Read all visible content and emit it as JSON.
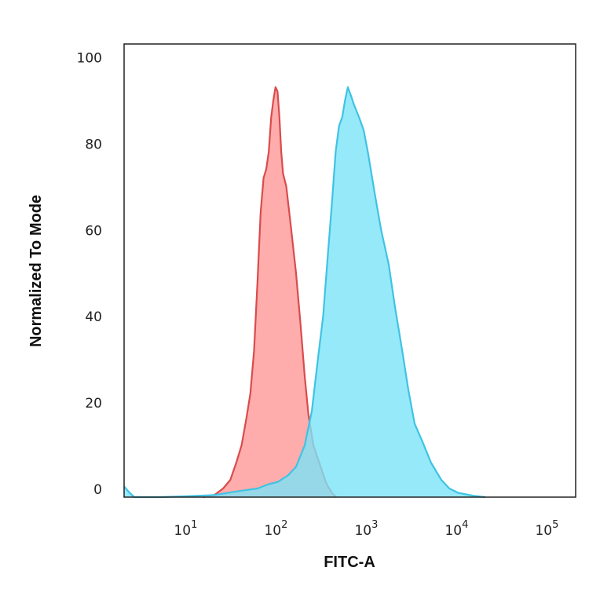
{
  "chart_data": {
    "type": "area",
    "xlabel": "FITC-A",
    "ylabel": "Normalized To Mode",
    "x_scale": "log",
    "xlim": [
      2,
      200000
    ],
    "ylim": [
      0,
      105
    ],
    "grid": false,
    "x_ticks": [
      {
        "value": 10,
        "base": "10",
        "exp": "1"
      },
      {
        "value": 100,
        "base": "10",
        "exp": "2"
      },
      {
        "value": 1000,
        "base": "10",
        "exp": "3"
      },
      {
        "value": 10000,
        "base": "10",
        "exp": "4"
      },
      {
        "value": 100000,
        "base": "10",
        "exp": "5"
      }
    ],
    "y_ticks": [
      {
        "value": 0,
        "label": "0"
      },
      {
        "value": 20,
        "label": "20"
      },
      {
        "value": 40,
        "label": "40"
      },
      {
        "value": 60,
        "label": "60"
      },
      {
        "value": 80,
        "label": "80"
      },
      {
        "value": 100,
        "label": "100"
      }
    ],
    "series": [
      {
        "fill": "#ff9d9d",
        "stroke": "#d94c4c",
        "fill_opacity": 0.85,
        "points": [
          [
            15,
            0
          ],
          [
            20,
            0.5
          ],
          [
            25,
            2
          ],
          [
            30,
            4
          ],
          [
            35,
            8
          ],
          [
            40,
            12
          ],
          [
            45,
            18
          ],
          [
            50,
            24
          ],
          [
            55,
            34
          ],
          [
            60,
            50
          ],
          [
            65,
            66
          ],
          [
            70,
            74
          ],
          [
            75,
            76
          ],
          [
            80,
            80
          ],
          [
            85,
            88
          ],
          [
            90,
            92
          ],
          [
            95,
            95
          ],
          [
            100,
            94
          ],
          [
            105,
            88
          ],
          [
            110,
            80
          ],
          [
            115,
            75
          ],
          [
            125,
            72
          ],
          [
            140,
            63
          ],
          [
            160,
            52
          ],
          [
            180,
            40
          ],
          [
            200,
            28
          ],
          [
            220,
            19
          ],
          [
            250,
            12
          ],
          [
            300,
            7
          ],
          [
            350,
            3
          ],
          [
            400,
            1
          ],
          [
            450,
            0
          ]
        ]
      },
      {
        "fill": "#7ce3f7",
        "stroke": "#3fc3e3",
        "fill_opacity": 0.8,
        "points": [
          [
            2,
            2.5
          ],
          [
            2.3,
            1
          ],
          [
            2.6,
            0
          ],
          [
            5,
            0
          ],
          [
            10,
            0.2
          ],
          [
            20,
            0.5
          ],
          [
            40,
            1.5
          ],
          [
            60,
            2
          ],
          [
            80,
            3
          ],
          [
            100,
            3.5
          ],
          [
            130,
            5
          ],
          [
            160,
            7
          ],
          [
            200,
            12
          ],
          [
            240,
            20
          ],
          [
            280,
            32
          ],
          [
            320,
            42
          ],
          [
            360,
            56
          ],
          [
            400,
            68
          ],
          [
            440,
            80
          ],
          [
            480,
            86
          ],
          [
            520,
            88
          ],
          [
            560,
            92
          ],
          [
            600,
            95
          ],
          [
            650,
            93
          ],
          [
            700,
            91
          ],
          [
            800,
            88
          ],
          [
            900,
            85
          ],
          [
            1000,
            80
          ],
          [
            1200,
            70
          ],
          [
            1400,
            62
          ],
          [
            1700,
            54
          ],
          [
            2000,
            44
          ],
          [
            2400,
            34
          ],
          [
            2800,
            25
          ],
          [
            3300,
            17
          ],
          [
            4000,
            13
          ],
          [
            5000,
            8
          ],
          [
            6500,
            4
          ],
          [
            8000,
            2
          ],
          [
            10000,
            1
          ],
          [
            15000,
            0.3
          ],
          [
            20000,
            0
          ]
        ]
      }
    ]
  }
}
